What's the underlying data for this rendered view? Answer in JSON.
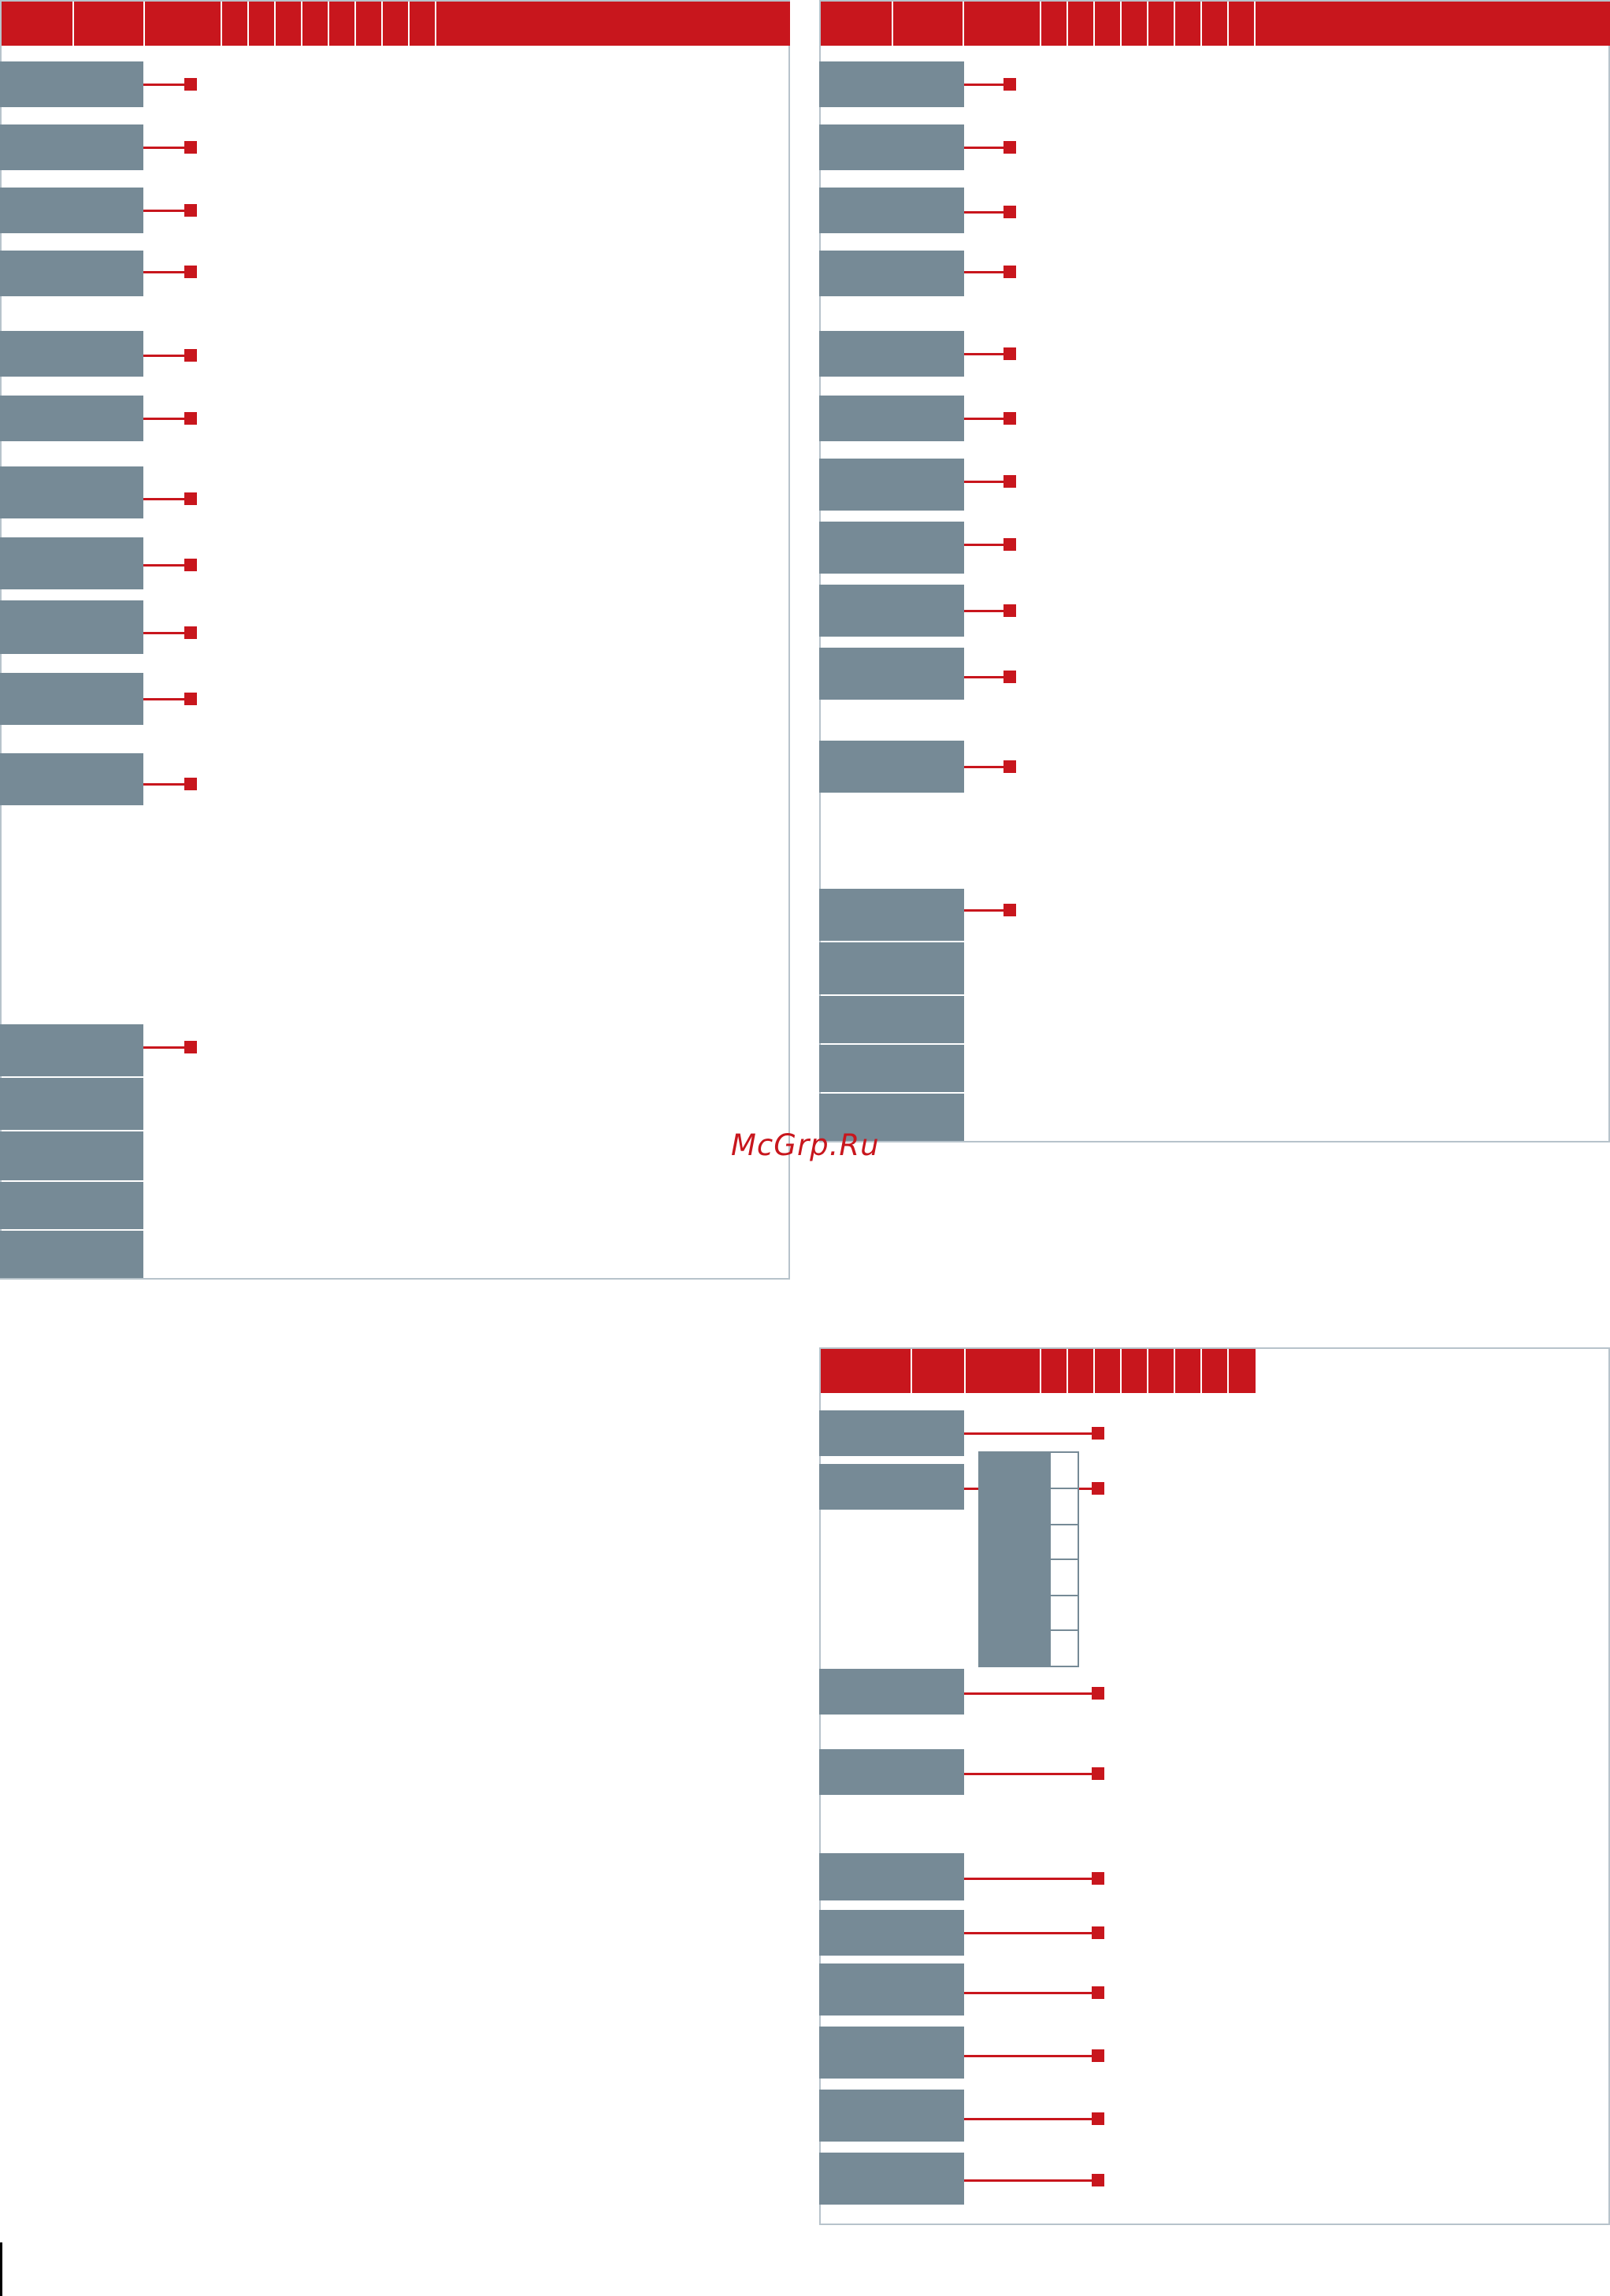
{
  "watermark": {
    "text": "McGrp.Ru"
  },
  "colors": {
    "accent": "#c8161d",
    "label_fill": "#768a96",
    "border": "#b7c3cb",
    "background": "#ffffff"
  },
  "panels": [
    {
      "id": "left",
      "label_boxes": 17,
      "markers": 12
    },
    {
      "id": "top-right",
      "label_boxes": 16,
      "markers": 12
    },
    {
      "id": "bottom-right",
      "label_boxes": 12,
      "markers": 12,
      "sub_table_rows": 6
    }
  ]
}
